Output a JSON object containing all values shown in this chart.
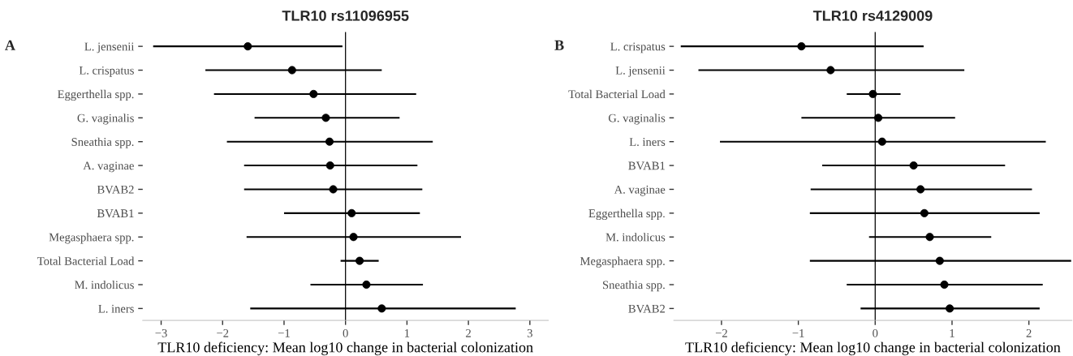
{
  "chart_data": [
    {
      "type": "scatter",
      "orientation": "horizontal",
      "title": "TLR10 rs11096955",
      "xlabel": "TLR10 deficiency: Mean log10 change in bacterial colonization",
      "annotations": [
        "A"
      ],
      "categories": [
        "L. jensenii",
        "L. crispatus",
        "Eggerthella spp.",
        "G. vaginalis",
        "Sneathia spp.",
        "A. vaginae",
        "BVAB2",
        "BVAB1",
        "Megasphaera spp.",
        "Total Bacterial Load",
        "M. indolicus",
        "L. iners"
      ],
      "series": [
        {
          "color": "#000000",
          "values": [
            -1.59,
            -0.87,
            -0.52,
            -0.32,
            -0.26,
            -0.25,
            -0.2,
            0.1,
            0.13,
            0.23,
            0.34,
            0.59
          ],
          "errors": [
            [
              -3.13,
              -0.05
            ],
            [
              -2.28,
              0.59
            ],
            [
              -2.14,
              1.15
            ],
            [
              -1.48,
              0.88
            ],
            [
              -1.93,
              1.42
            ],
            [
              -1.65,
              1.17
            ],
            [
              -1.65,
              1.25
            ],
            [
              -1.0,
              1.21
            ],
            [
              -1.61,
              1.88
            ],
            [
              -0.08,
              0.54
            ],
            [
              -0.57,
              1.26
            ],
            [
              -1.55,
              2.77
            ]
          ]
        }
      ],
      "xticks": [
        {
          "value": -3,
          "label": "−3"
        },
        {
          "value": -2,
          "label": "−2"
        },
        {
          "value": -1,
          "label": "−1"
        },
        0,
        1,
        2,
        3
      ],
      "xlim": [
        -3.3,
        3.3
      ],
      "ref_lines": [
        {
          "axis": "x",
          "value": 0,
          "color": "#000000"
        }
      ],
      "marker": "circle",
      "grid": false,
      "legend": false
    },
    {
      "type": "scatter",
      "orientation": "horizontal",
      "title": "TLR10 rs4129009",
      "xlabel": "TLR10 deficiency: Mean log10 change in bacterial colonization",
      "annotations": [
        "B"
      ],
      "categories": [
        "L. crispatus",
        "L. jensenii",
        "Total Bacterial Load",
        "G. vaginalis",
        "L. iners",
        "BVAB1",
        "A. vaginae",
        "Eggerthella spp.",
        "M. indolicus",
        "Megasphaera spp.",
        "Sneathia spp.",
        "BVAB2"
      ],
      "series": [
        {
          "color": "#000000",
          "values": [
            -0.96,
            -0.58,
            -0.03,
            0.04,
            0.09,
            0.5,
            0.59,
            0.64,
            0.71,
            0.84,
            0.9,
            0.97
          ],
          "errors": [
            [
              -2.53,
              0.63
            ],
            [
              -2.3,
              1.16
            ],
            [
              -0.37,
              0.33
            ],
            [
              -0.96,
              1.04
            ],
            [
              -2.02,
              2.22
            ],
            [
              -0.69,
              1.69
            ],
            [
              -0.84,
              2.04
            ],
            [
              -0.85,
              2.14
            ],
            [
              -0.08,
              1.51
            ],
            [
              -0.85,
              2.55
            ],
            [
              -0.37,
              2.18
            ],
            [
              -0.19,
              2.14
            ]
          ]
        }
      ],
      "xticks": [
        {
          "value": -2,
          "label": "−2"
        },
        {
          "value": -1,
          "label": "−1"
        },
        0,
        1,
        2
      ],
      "xlim": [
        -2.62,
        2.56
      ],
      "ref_lines": [
        {
          "axis": "x",
          "value": 0,
          "color": "#000000"
        }
      ],
      "marker": "circle",
      "grid": false,
      "legend": false
    }
  ]
}
